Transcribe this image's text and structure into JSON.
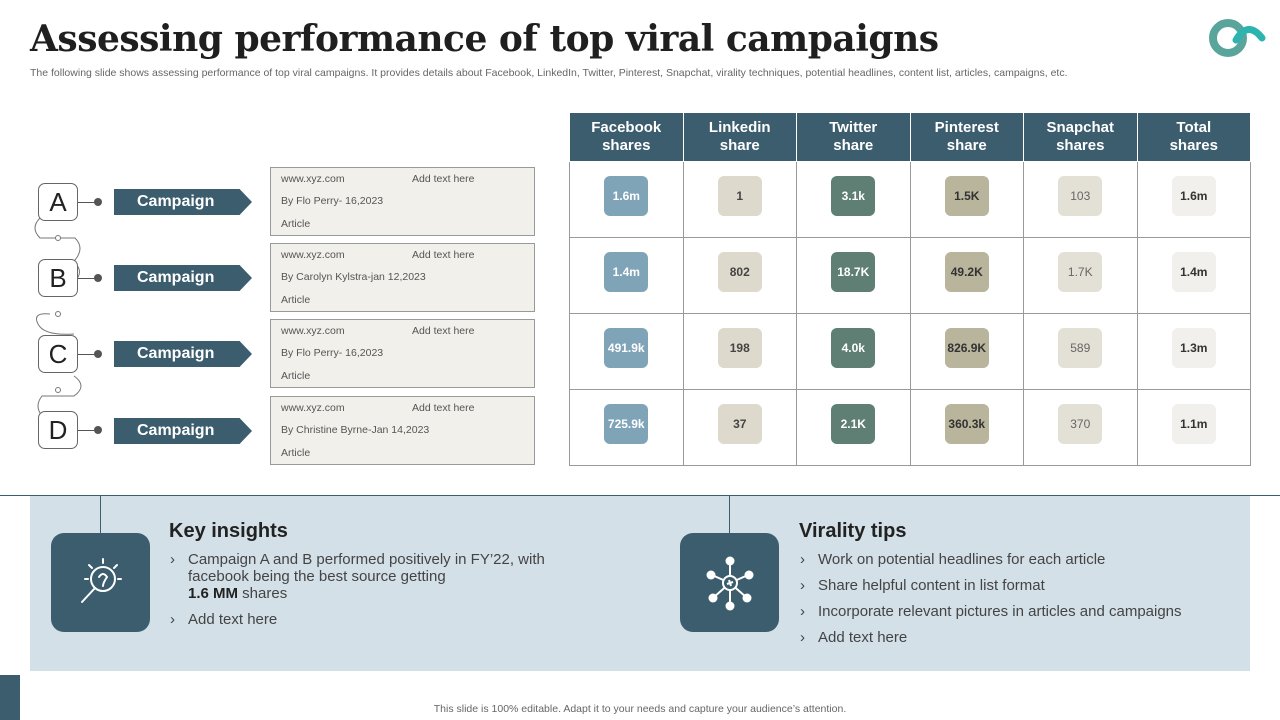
{
  "header": {
    "title": "Assessing performance of top viral campaigns",
    "subtitle": "The following slide shows assessing performance of top viral campaigns. It provides details about Facebook, LinkedIn, Twitter, Pinterest, Snapchat, virality techniques, potential headlines, content list, articles, campaigns, etc."
  },
  "campaigns": [
    {
      "letter": "A",
      "label": "Campaign",
      "url": "www.xyz.com",
      "add_text": "Add text here",
      "author": "By Flo Perry- 16,2023",
      "type": "Article"
    },
    {
      "letter": "B",
      "label": "Campaign",
      "url": "www.xyz.com",
      "add_text": "Add text here",
      "author": "By Carolyn Kylstra-jan 12,2023",
      "type": "Article"
    },
    {
      "letter": "C",
      "label": "Campaign",
      "url": "www.xyz.com",
      "add_text": "Add text here",
      "author": "By Flo Perry- 16,2023",
      "type": "Article"
    },
    {
      "letter": "D",
      "label": "Campaign",
      "url": "www.xyz.com",
      "add_text": "Add text here",
      "author": "By Christine Byrne-Jan 14,2023",
      "type": "Article"
    }
  ],
  "table": {
    "headers": [
      [
        "Facebook",
        "shares"
      ],
      [
        "Linkedin",
        "share"
      ],
      [
        "Twitter",
        "share"
      ],
      [
        "Pinterest",
        "share"
      ],
      [
        "Snapchat",
        "shares"
      ],
      [
        "Total",
        "shares"
      ]
    ],
    "rows": [
      [
        "1.6m",
        "1",
        "3.1k",
        "1.5K",
        "103",
        "1.6m"
      ],
      [
        "1.4m",
        "802",
        "18.7K",
        "49.2K",
        "1.7K",
        "1.4m"
      ],
      [
        "491.9k",
        "198",
        "4.0k",
        "826.9K",
        "589",
        "1.3m"
      ],
      [
        "725.9k",
        "37",
        "2.1K",
        "360.3k",
        "370",
        "1.1m"
      ]
    ]
  },
  "insights": {
    "title": "Key insights",
    "icon": "lightbulb-magnifier-icon",
    "bullet1_line1": "Campaign A and B performed positively in FY’22, with",
    "bullet1_line2": "facebook being the best source getting",
    "bullet1_bold": "1.6 MM",
    "bullet1_tail": " shares",
    "bullet2": "Add text here"
  },
  "tips": {
    "title": "Virality tips",
    "icon": "network-hub-icon",
    "items": [
      "Work on potential headlines for each article",
      "Share helpful content in list format",
      "Incorporate relevant pictures in articles and campaigns",
      "Add text here"
    ]
  },
  "footer": "This slide is 100% editable.  Adapt it to your needs and capture your audience’s attention.",
  "colors": {
    "primary": "#3b5d6e",
    "panel": "#d3e0e7",
    "accent": "#5aa59b"
  }
}
